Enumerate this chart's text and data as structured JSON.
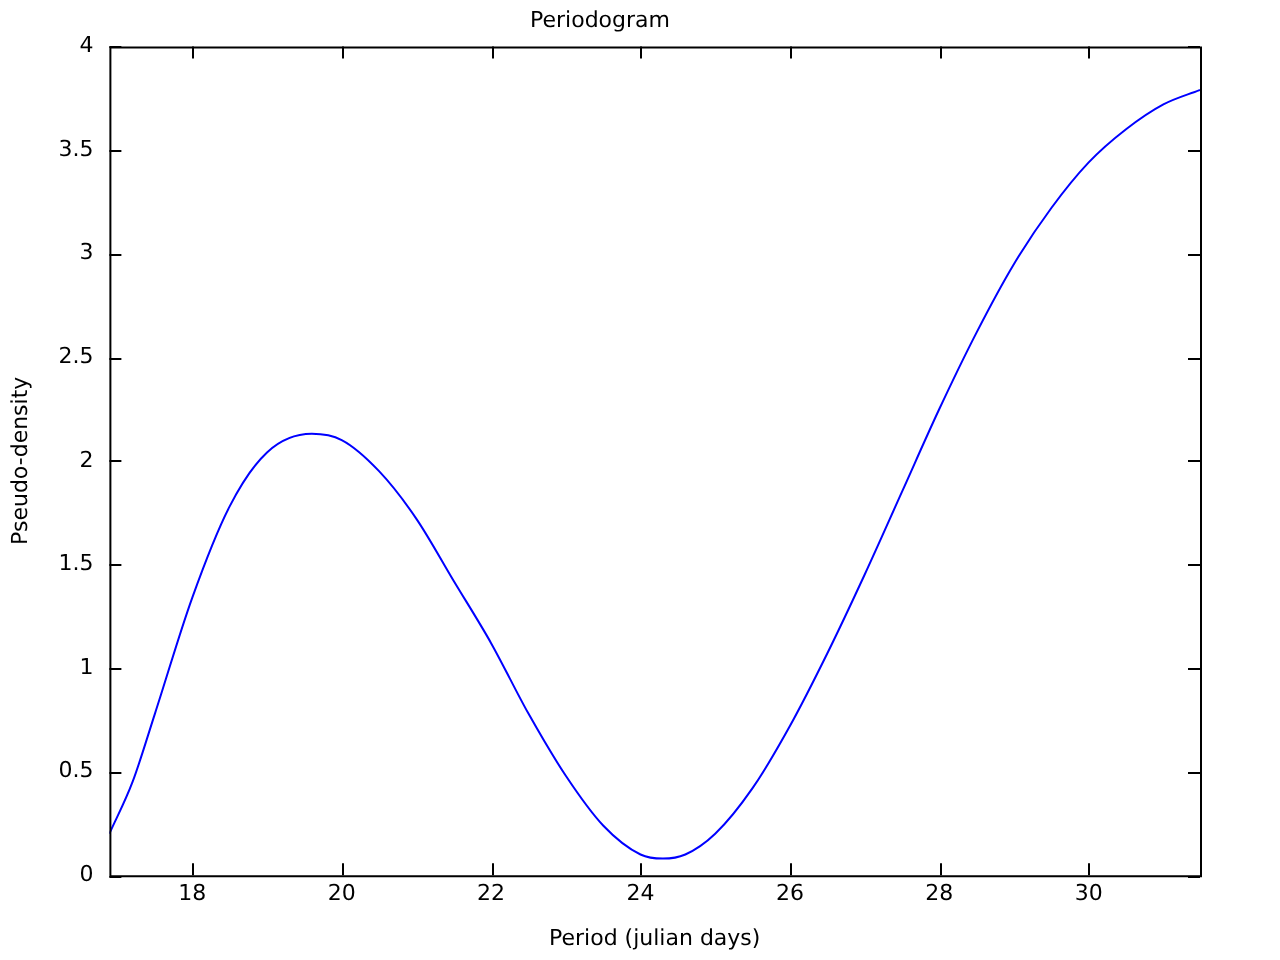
{
  "chart_data": {
    "type": "line",
    "title": "Periodogram",
    "xlabel": "Period (julian days)",
    "ylabel": "Pseudo-density",
    "x": [
      16.89,
      17.2,
      17.5,
      18,
      18.5,
      19,
      19.6,
      20,
      20.5,
      21,
      21.5,
      22,
      22.5,
      23,
      23.5,
      24,
      24.3,
      24.6,
      25,
      25.5,
      26,
      26.5,
      27,
      27.5,
      28,
      28.5,
      29,
      29.5,
      30,
      30.5,
      31,
      31.49
    ],
    "series": [
      {
        "color": "#0000ff",
        "values": [
          0.2,
          0.45,
          0.78,
          1.34,
          1.78,
          2.04,
          2.13,
          2.1,
          1.95,
          1.72,
          1.42,
          1.12,
          0.78,
          0.48,
          0.24,
          0.1,
          0.08,
          0.1,
          0.2,
          0.42,
          0.72,
          1.07,
          1.45,
          1.85,
          2.25,
          2.62,
          2.95,
          3.22,
          3.44,
          3.6,
          3.72,
          3.79
        ]
      }
    ],
    "xlim": [
      16.89,
      31.49
    ],
    "xticks": [
      18,
      20,
      22,
      24,
      26,
      28,
      30
    ],
    "ylim": [
      0,
      4
    ],
    "yticks": [
      0,
      0.5,
      1,
      1.5,
      2,
      2.5,
      3,
      3.5,
      4
    ],
    "grid": false,
    "legend": false,
    "marker": "none",
    "line_style": "solid"
  }
}
